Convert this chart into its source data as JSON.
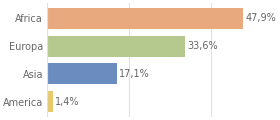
{
  "categories": [
    "Africa",
    "Europa",
    "Asia",
    "America"
  ],
  "values": [
    47.9,
    33.6,
    17.1,
    1.4
  ],
  "labels": [
    "47,9%",
    "33,6%",
    "17,1%",
    "1,4%"
  ],
  "bar_colors": [
    "#e8a97e",
    "#b5c98e",
    "#6b8cbe",
    "#e8c96e"
  ],
  "background_color": "#ffffff",
  "grid_color": "#e0e0e0",
  "xlim": [
    0,
    55
  ],
  "bar_height": 0.75,
  "label_fontsize": 7.0,
  "tick_fontsize": 7.0,
  "text_color": "#666666"
}
